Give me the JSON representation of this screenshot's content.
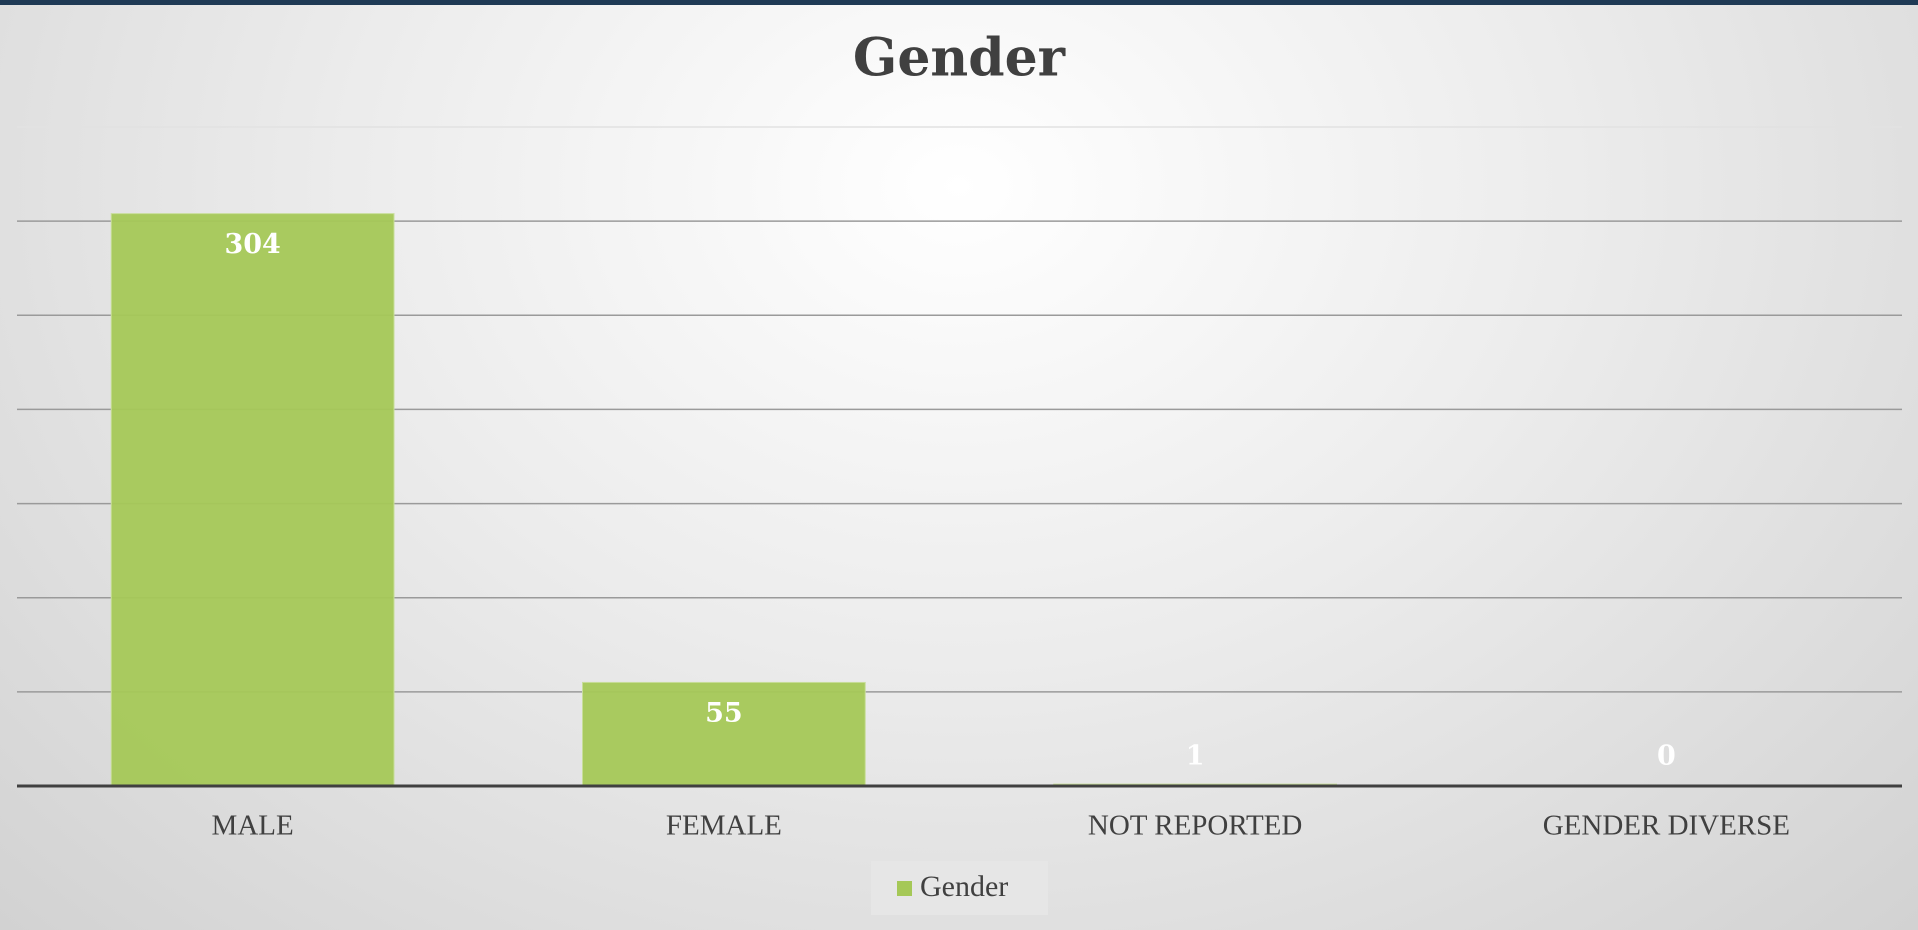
{
  "chart_data": {
    "type": "bar",
    "title": "Gender",
    "categories": [
      "MALE",
      "FEMALE",
      "NOT REPORTED",
      "GENDER DIVERSE"
    ],
    "series": [
      {
        "name": "Gender",
        "color": "#a5c857",
        "values": [
          304,
          55,
          1,
          0
        ]
      }
    ],
    "ylim": [
      0,
      350
    ],
    "yticks": [
      0,
      50,
      100,
      150,
      200,
      250,
      300,
      350
    ],
    "grid": true,
    "legend": "bottom"
  }
}
